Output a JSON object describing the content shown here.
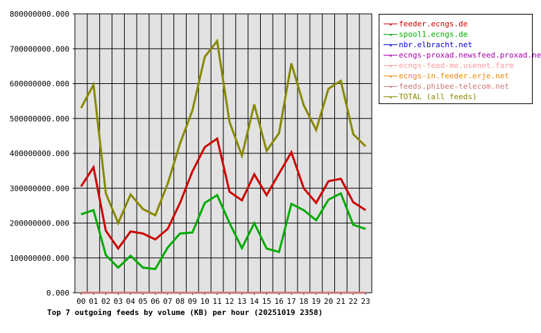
{
  "chart_data": {
    "type": "line",
    "title": "Top 7 outgoing feeds by volume (KB) per hour (20251019 2358)",
    "xlabel": "",
    "ylabel": "",
    "ylim": [
      0,
      800000000
    ],
    "y_ticks": [
      "0.000",
      "100000000.000",
      "200000000.000",
      "300000000.000",
      "400000000.000",
      "500000000.000",
      "600000000.000",
      "700000000.000",
      "800000000.000"
    ],
    "categories": [
      "00",
      "01",
      "02",
      "03",
      "04",
      "05",
      "06",
      "07",
      "08",
      "09",
      "10",
      "11",
      "12",
      "13",
      "14",
      "15",
      "16",
      "17",
      "18",
      "19",
      "20",
      "21",
      "22",
      "23"
    ],
    "grid": true,
    "legend_position": "right",
    "series": [
      {
        "name": "feeder.ecngs.de",
        "color": "#cc0000",
        "values": [
          305000000,
          360000000,
          178000000,
          127000000,
          176000000,
          170000000,
          153000000,
          183000000,
          258000000,
          348000000,
          418000000,
          442000000,
          290000000,
          265000000,
          340000000,
          280000000,
          342000000,
          403000000,
          300000000,
          258000000,
          320000000,
          327000000,
          260000000,
          237000000
        ]
      },
      {
        "name": "spool1.ecngs.de",
        "color": "#00aa00",
        "values": [
          225000000,
          237000000,
          108000000,
          72000000,
          106000000,
          72000000,
          68000000,
          130000000,
          170000000,
          173000000,
          258000000,
          280000000,
          200000000,
          128000000,
          200000000,
          127000000,
          117000000,
          255000000,
          237000000,
          208000000,
          267000000,
          285000000,
          195000000,
          183000000
        ]
      },
      {
        "name": "nbr.elbracht.net",
        "color": "#0000cc",
        "values": [
          0,
          0,
          0,
          0,
          0,
          0,
          0,
          0,
          0,
          0,
          0,
          0,
          0,
          0,
          0,
          0,
          0,
          0,
          0,
          0,
          0,
          0,
          0,
          0
        ]
      },
      {
        "name": "ecngs-proxad.newsfeed.proxad.net",
        "color": "#aa00aa",
        "values": [
          0,
          0,
          0,
          0,
          0,
          0,
          0,
          0,
          0,
          0,
          0,
          0,
          0,
          0,
          0,
          0,
          0,
          0,
          0,
          0,
          0,
          0,
          0,
          0
        ]
      },
      {
        "name": "ecngs-feed-me.usenet.farm",
        "color": "#ff9999",
        "values": [
          0,
          0,
          0,
          0,
          0,
          0,
          0,
          0,
          0,
          0,
          0,
          0,
          0,
          0,
          0,
          0,
          0,
          0,
          0,
          0,
          0,
          0,
          0,
          0
        ]
      },
      {
        "name": "ecngs-in.feeder.erje.net",
        "color": "#ee8800",
        "values": [
          0,
          0,
          0,
          0,
          0,
          0,
          0,
          0,
          0,
          0,
          0,
          0,
          0,
          0,
          0,
          0,
          0,
          0,
          0,
          0,
          0,
          0,
          0,
          0
        ]
      },
      {
        "name": "feeds.phibee-telecom.net",
        "color": "#cc7777",
        "values": [
          0,
          0,
          0,
          0,
          0,
          0,
          0,
          0,
          0,
          0,
          0,
          0,
          0,
          0,
          0,
          0,
          0,
          0,
          0,
          0,
          0,
          0,
          0,
          0
        ]
      },
      {
        "name": "TOTAL (all feeds)",
        "color": "#888800",
        "values": [
          530000000,
          597000000,
          285000000,
          200000000,
          282000000,
          240000000,
          222000000,
          313000000,
          428000000,
          523000000,
          677000000,
          722000000,
          490000000,
          393000000,
          540000000,
          407000000,
          458000000,
          658000000,
          538000000,
          467000000,
          585000000,
          608000000,
          455000000,
          420000000
        ]
      }
    ]
  }
}
